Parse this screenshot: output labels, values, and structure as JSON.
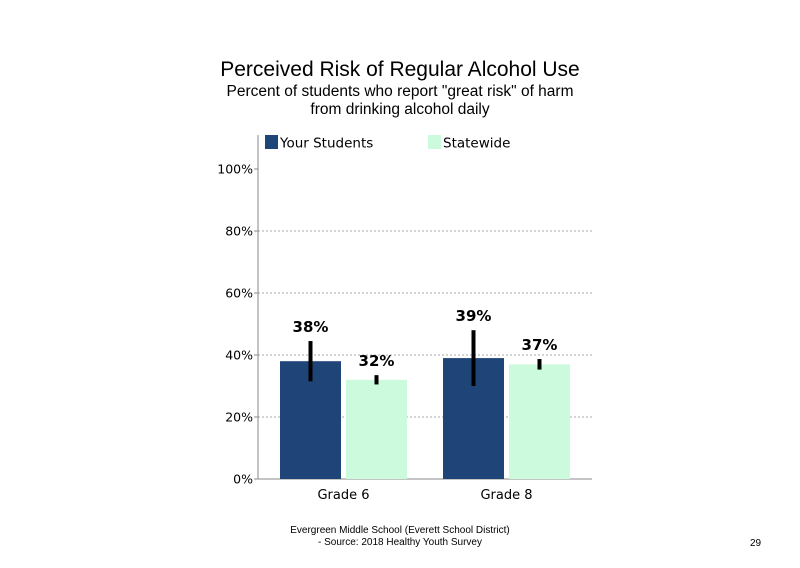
{
  "chart_data": {
    "type": "bar",
    "title": "Perceived Risk of Regular Alcohol Use",
    "subtitle_lines": [
      "Percent of students  who report \"great risk\" of harm",
      "from drinking alcohol daily"
    ],
    "categories": [
      "Grade 6",
      "Grade 8"
    ],
    "series": [
      {
        "name": "Your Students",
        "color": "#1f4477",
        "values": [
          38,
          39
        ],
        "labels": [
          "38%",
          "39%"
        ],
        "err_low": [
          31.5,
          30
        ],
        "err_high": [
          44.5,
          48
        ]
      },
      {
        "name": "Statewide",
        "color": "#ccfadc",
        "values": [
          32,
          37
        ],
        "labels": [
          "32%",
          "37%"
        ],
        "err_low": [
          30.5,
          35.3
        ],
        "err_high": [
          33.5,
          38.7
        ]
      }
    ],
    "ylim": [
      0,
      100
    ],
    "yticks": [
      0,
      20,
      40,
      60,
      80,
      100
    ],
    "ytick_labels": [
      "0%",
      "20%",
      "40%",
      "60%",
      "80%",
      "100%"
    ],
    "grid": true,
    "legend_position": "top"
  },
  "footer": {
    "line1": "Evergreen Middle  School (Everett School District)",
    "line2": "- Source: 2018 Healthy  Youth Survey"
  },
  "page_number": "29"
}
